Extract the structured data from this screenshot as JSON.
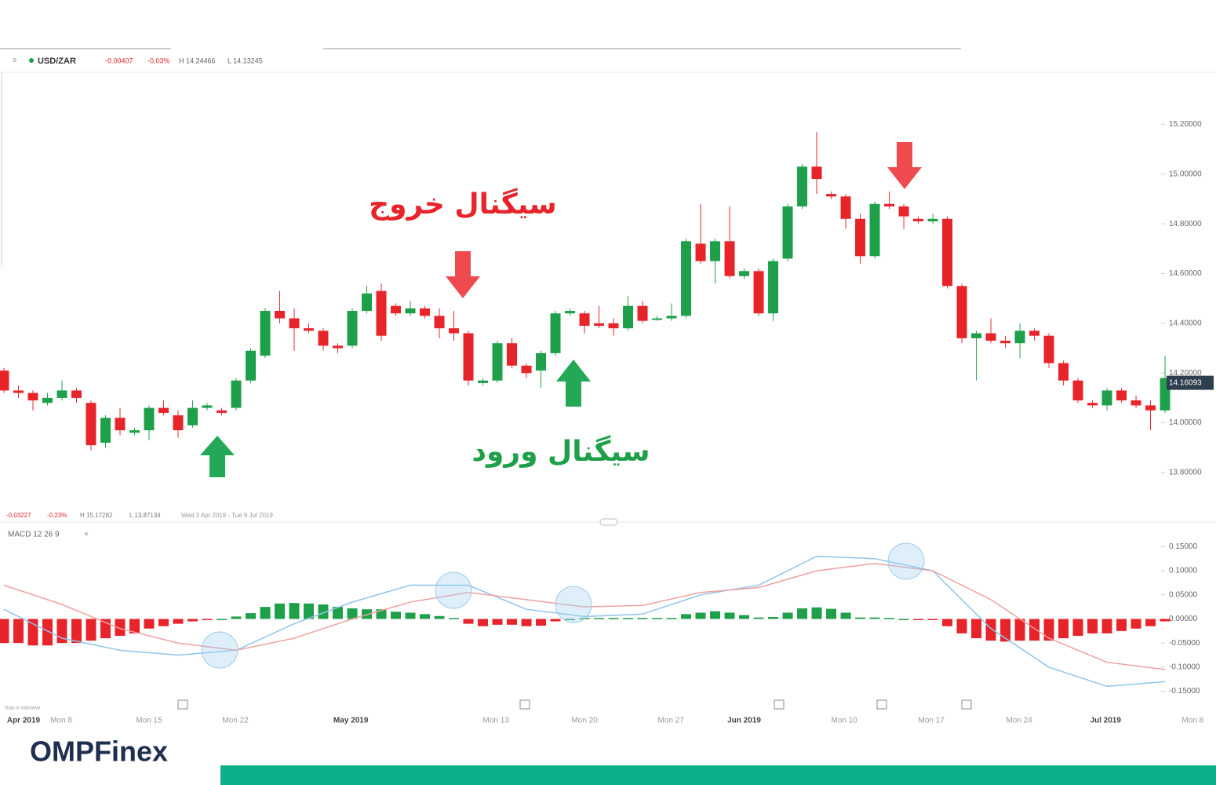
{
  "header": {
    "symbol": "USD/ZAR",
    "change": "-0.00407",
    "change_pct": "-0.03%",
    "high": "H 14.24466",
    "low": "L 14.13245"
  },
  "range_bar": {
    "change": "-0.03227",
    "change_pct": "-0.23%",
    "high": "H 15.17282",
    "low": "L 13.87134",
    "period": "Wed 3 Apr 2019 - Tue 9 Jul 2019"
  },
  "disclaimer": "Data is indicative",
  "logo": "OMPFinex",
  "annotations": {
    "exit": "سیگنال خروج",
    "entry": "سیگنال ورود"
  },
  "chart_data": [
    {
      "type": "candlestick",
      "up_color": "#1ea04a",
      "down_color": "#e8242b",
      "open": [
        14.21,
        14.13,
        14.12,
        14.08,
        14.1,
        14.13,
        14.08,
        13.92,
        14.02,
        13.96,
        13.97,
        14.06,
        14.03,
        13.99,
        14.06,
        14.05,
        14.06,
        14.17,
        14.27,
        14.45,
        14.42,
        14.38,
        14.37,
        14.31,
        14.31,
        14.45,
        14.53,
        14.47,
        14.44,
        14.46,
        14.43,
        14.38,
        14.36,
        14.16,
        14.17,
        14.32,
        14.23,
        14.21,
        14.28,
        14.44,
        14.44,
        14.4,
        14.4,
        14.38,
        14.47,
        14.42,
        14.42,
        14.43,
        14.72,
        14.65,
        14.73,
        14.59,
        14.61,
        14.44,
        14.66,
        14.87,
        15.03,
        14.92,
        14.91,
        14.82,
        14.67,
        14.88,
        14.87,
        14.82,
        14.81,
        14.82,
        14.55,
        14.34,
        14.36,
        14.33,
        14.32,
        14.37,
        14.35,
        14.24,
        14.17,
        14.08,
        14.07,
        14.13,
        14.09,
        14.07,
        14.05
      ],
      "high": [
        14.22,
        14.15,
        14.13,
        14.12,
        14.17,
        14.14,
        14.09,
        14.03,
        14.06,
        13.98,
        14.07,
        14.09,
        14.05,
        14.09,
        14.08,
        14.06,
        14.18,
        14.3,
        14.46,
        14.53,
        14.46,
        14.4,
        14.38,
        14.32,
        14.46,
        14.55,
        14.56,
        14.48,
        14.49,
        14.47,
        14.46,
        14.45,
        14.37,
        14.18,
        14.33,
        14.34,
        14.24,
        14.29,
        14.45,
        14.46,
        14.45,
        14.47,
        14.42,
        14.51,
        14.49,
        14.43,
        14.48,
        14.74,
        14.88,
        14.74,
        14.87,
        14.62,
        14.62,
        14.66,
        14.88,
        15.04,
        15.17,
        14.93,
        14.92,
        14.84,
        14.89,
        14.93,
        14.88,
        14.83,
        14.84,
        14.83,
        14.56,
        14.37,
        14.42,
        14.35,
        14.4,
        14.38,
        14.36,
        14.25,
        14.18,
        14.09,
        14.14,
        14.14,
        14.11,
        14.09,
        14.27
      ],
      "low": [
        14.12,
        14.1,
        14.05,
        14.07,
        14.09,
        14.08,
        13.89,
        13.9,
        13.95,
        13.95,
        13.93,
        14.03,
        13.94,
        13.98,
        14.05,
        14.03,
        14.05,
        14.16,
        14.26,
        14.4,
        14.29,
        14.36,
        14.29,
        14.28,
        14.3,
        14.44,
        14.33,
        14.43,
        14.43,
        14.42,
        14.34,
        14.33,
        14.15,
        14.15,
        14.16,
        14.22,
        14.18,
        14.14,
        14.27,
        14.43,
        14.36,
        14.38,
        14.35,
        14.37,
        14.4,
        14.41,
        14.41,
        14.42,
        14.64,
        14.56,
        14.58,
        14.58,
        14.43,
        14.41,
        14.65,
        14.86,
        14.92,
        14.9,
        14.78,
        14.64,
        14.66,
        14.86,
        14.78,
        14.8,
        14.8,
        14.54,
        14.32,
        14.17,
        14.32,
        14.3,
        14.26,
        14.33,
        14.22,
        14.15,
        14.08,
        14.06,
        14.05,
        14.08,
        14.06,
        13.97,
        14.04
      ],
      "close": [
        14.13,
        14.12,
        14.09,
        14.1,
        14.13,
        14.1,
        13.91,
        14.02,
        13.97,
        13.97,
        14.06,
        14.04,
        13.97,
        14.06,
        14.07,
        14.04,
        14.17,
        14.29,
        14.45,
        14.42,
        14.38,
        14.37,
        14.31,
        14.3,
        14.45,
        14.52,
        14.35,
        14.44,
        14.46,
        14.43,
        14.38,
        14.36,
        14.17,
        14.17,
        14.32,
        14.23,
        14.2,
        14.28,
        14.44,
        14.45,
        14.39,
        14.39,
        14.38,
        14.47,
        14.41,
        14.42,
        14.43,
        14.73,
        14.65,
        14.73,
        14.59,
        14.61,
        14.44,
        14.65,
        14.87,
        15.03,
        14.98,
        14.91,
        14.82,
        14.67,
        14.88,
        14.87,
        14.83,
        14.81,
        14.82,
        14.55,
        14.34,
        14.36,
        14.33,
        14.32,
        14.37,
        14.35,
        14.24,
        14.17,
        14.09,
        14.07,
        14.13,
        14.09,
        14.07,
        14.05,
        14.18
      ],
      "last_price": 14.16093,
      "xlim": [
        -0.27,
        83.51
      ],
      "ylim": [
        13.68,
        15.4
      ],
      "yticks": [
        {
          "value": 13.8,
          "label": "13.80000"
        },
        {
          "value": 14.0,
          "label": "14.00000"
        },
        {
          "value": 14.2,
          "label": "14.20000"
        },
        {
          "value": 14.4,
          "label": "14.40000"
        },
        {
          "value": 14.6,
          "label": "14.60000"
        },
        {
          "value": 14.8,
          "label": "14.80000"
        },
        {
          "value": 15.0,
          "label": "15.00000"
        },
        {
          "value": 15.2,
          "label": "15.20000"
        }
      ]
    },
    {
      "type": "macd",
      "title": "MACD 12 26 9",
      "up_color": "#1ea04a",
      "down_color": "#e8242b",
      "histogram": [
        -0.05,
        -0.05,
        -0.055,
        -0.055,
        -0.05,
        -0.05,
        -0.045,
        -0.04,
        -0.035,
        -0.03,
        -0.02,
        -0.015,
        -0.01,
        -0.005,
        -0.002,
        0.0,
        0.005,
        0.012,
        0.025,
        0.032,
        0.033,
        0.032,
        0.03,
        0.025,
        0.022,
        0.02,
        0.02,
        0.015,
        0.013,
        0.01,
        0.006,
        0.002,
        -0.01,
        -0.015,
        -0.012,
        -0.012,
        -0.015,
        -0.014,
        -0.005,
        0.0,
        0.002,
        0.002,
        0.002,
        0.002,
        0.002,
        0.002,
        0.002,
        0.01,
        0.013,
        0.016,
        0.013,
        0.008,
        0.003,
        0.004,
        0.013,
        0.022,
        0.024,
        0.021,
        0.013,
        0.003,
        0.003,
        0.002,
        0.0,
        -0.002,
        -0.002,
        -0.015,
        -0.03,
        -0.04,
        -0.045,
        -0.047,
        -0.045,
        -0.045,
        -0.045,
        -0.04,
        -0.035,
        -0.03,
        -0.03,
        -0.025,
        -0.02,
        -0.015,
        -0.005
      ],
      "x": [
        0,
        4,
        8,
        12,
        16,
        20,
        24,
        28,
        32,
        36,
        40,
        44,
        48,
        52,
        56,
        60,
        64,
        68,
        72,
        76,
        80
      ],
      "series": [
        {
          "color": "#8ec5ea",
          "values": [
            0.02,
            -0.04,
            -0.065,
            -0.075,
            -0.065,
            -0.01,
            0.035,
            0.07,
            0.07,
            0.02,
            0.005,
            0.01,
            0.05,
            0.07,
            0.13,
            0.125,
            0.1,
            -0.02,
            -0.1,
            -0.14,
            -0.13
          ]
        },
        {
          "color": "#f0a0a0",
          "values": [
            0.07,
            0.03,
            -0.02,
            -0.05,
            -0.065,
            -0.04,
            0.0,
            0.035,
            0.055,
            0.04,
            0.025,
            0.028,
            0.055,
            0.065,
            0.1,
            0.115,
            0.1,
            0.04,
            -0.04,
            -0.09,
            -0.105
          ]
        }
      ],
      "ylim": [
        -0.18,
        0.175
      ],
      "yticks": [
        {
          "value": -0.15,
          "label": "-0.15000"
        },
        {
          "value": -0.1,
          "label": "-0.10000"
        },
        {
          "value": -0.05,
          "label": "-0.05000"
        },
        {
          "value": 0,
          "label": "0.00000"
        },
        {
          "value": 0.05,
          "label": "0.05000"
        },
        {
          "value": 0.1,
          "label": "0.10000"
        },
        {
          "value": 0.15,
          "label": "0.15000"
        }
      ],
      "xticks": [
        {
          "value": 1.35,
          "label": "Apr 2019"
        },
        {
          "value": 3.95,
          "label": "Mon 8"
        },
        {
          "value": 10,
          "label": "Mon 15"
        },
        {
          "value": 15.95,
          "label": "Mon 22"
        },
        {
          "value": 23.9,
          "label": "May 2019"
        },
        {
          "value": 33.9,
          "label": "Mon 13"
        },
        {
          "value": 40,
          "label": "Mon 20"
        },
        {
          "value": 45.95,
          "label": "Mon 27"
        },
        {
          "value": 51,
          "label": "Jun 2019"
        },
        {
          "value": 57.9,
          "label": "Mon 10"
        },
        {
          "value": 63.9,
          "label": "Mon 17"
        },
        {
          "value": 69.95,
          "label": "Mon 24"
        },
        {
          "value": 75.9,
          "label": "Jul 2019"
        },
        {
          "value": 81.9,
          "label": "Mon 8"
        }
      ]
    }
  ]
}
